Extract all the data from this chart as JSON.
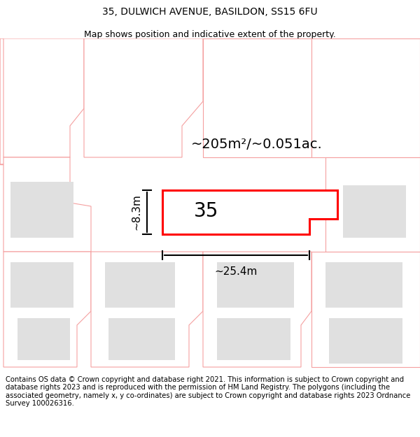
{
  "title_line1": "35, DULWICH AVENUE, BASILDON, SS15 6FU",
  "title_line2": "Map shows position and indicative extent of the property.",
  "footer_text": "Contains OS data © Crown copyright and database right 2021. This information is subject to Crown copyright and database rights 2023 and is reproduced with the permission of HM Land Registry. The polygons (including the associated geometry, namely x, y co-ordinates) are subject to Crown copyright and database rights 2023 Ordnance Survey 100026316.",
  "area_text": "~205m²/~0.051ac.",
  "house_number": "35",
  "dim_width": "~25.4m",
  "dim_height": "~8.3m",
  "map_bg": "#ffffff",
  "plot_fill": "#ffffff",
  "plot_border": "#ff0000",
  "bldg_fill": "#e0e0e0",
  "bldg_edge": "#d0d0d0",
  "pink": "#f5a0a0",
  "title_fontsize": 10,
  "footer_fontsize": 7.2,
  "title_fs2": 9
}
